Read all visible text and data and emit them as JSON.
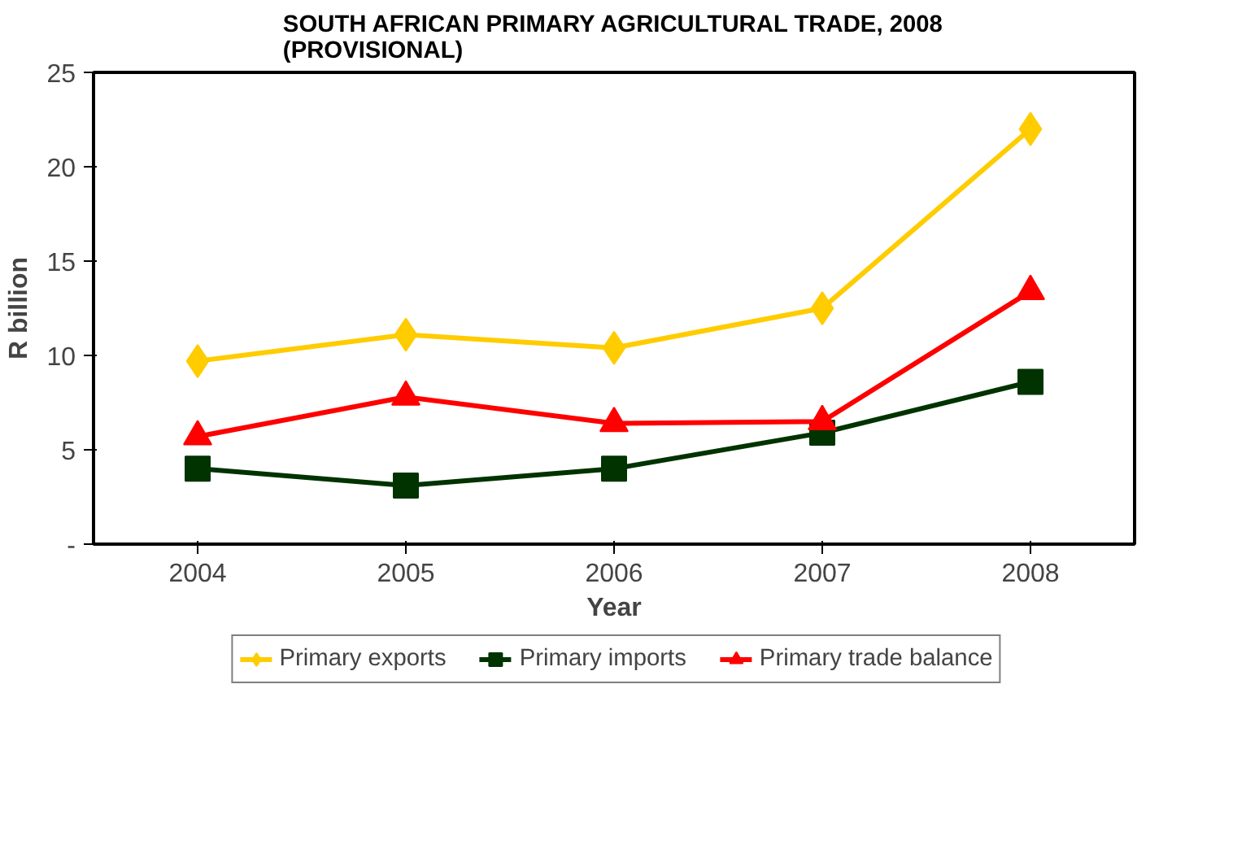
{
  "chart_data": {
    "type": "line",
    "title": "SOUTH AFRICAN PRIMARY AGRICULTURAL TRADE, 2008\n(PROVISIONAL)",
    "xlabel": "Year",
    "ylabel": "R billion",
    "categories": [
      "2004",
      "2005",
      "2006",
      "2007",
      "2008"
    ],
    "series": [
      {
        "name": "Primary exports",
        "color": "#ffcc00",
        "marker": "diamond",
        "values": [
          9.7,
          11.1,
          10.4,
          12.5,
          22.0
        ]
      },
      {
        "name": "Primary imports",
        "color": "#003300",
        "marker": "square",
        "values": [
          4.0,
          3.1,
          4.0,
          5.9,
          8.6
        ]
      },
      {
        "name": "Primary trade balance",
        "color": "#ff0000",
        "marker": "triangle",
        "values": [
          5.7,
          7.8,
          6.4,
          6.5,
          13.4
        ]
      }
    ],
    "ylim": [
      0,
      25
    ],
    "yticks": [
      {
        "value": 0,
        "label": "-"
      },
      5,
      10,
      15,
      20,
      25
    ],
    "grid": false,
    "legend": "bottom"
  }
}
